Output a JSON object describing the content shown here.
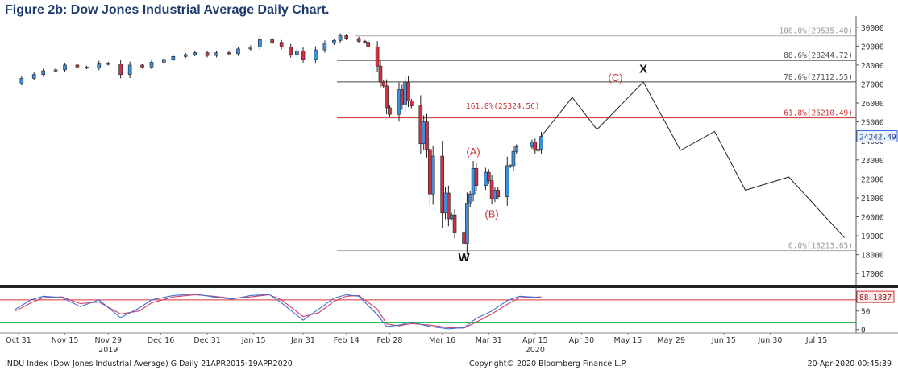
{
  "title": "Figure 2b: Dow Jones Industrial Average Daily Chart.",
  "footer": {
    "left": "INDU Index (Dow Jones Industrial Average) G  Daily 21APR2015-19APR2020",
    "center": "Copyright© 2020 Bloomberg Finance L.P.",
    "right": "20-Apr-2020 00:45:39"
  },
  "colors": {
    "up": "#3f8fd8",
    "down": "#d03040",
    "fib_line": "#444444",
    "fib_red_line": "#cc3333",
    "fib_label": "#555555",
    "red_label": "#cc3333",
    "osc_k": "#3f6fd8",
    "osc_d": "#d04060",
    "osc_upper": "#dd3333",
    "osc_lower": "#33bb55"
  },
  "chart_data": [
    {
      "type": "candlestick",
      "ylim": [
        16500,
        30500
      ],
      "y_ticks": [
        17000,
        18000,
        19000,
        20000,
        21000,
        22000,
        23000,
        24000,
        25000,
        26000,
        27000,
        28000,
        29000,
        30000
      ],
      "x_labels": [
        {
          "label": "Oct 31",
          "date": "2019-10-31"
        },
        {
          "label": "Nov 15",
          "date": "2019-11-15"
        },
        {
          "label": "Nov 29",
          "sublabel": "2019",
          "date": "2019-11-29"
        },
        {
          "label": "Dec 16",
          "date": "2019-12-16"
        },
        {
          "label": "Dec 31",
          "date": "2019-12-31"
        },
        {
          "label": "Jan 15",
          "date": "2020-01-15"
        },
        {
          "label": "Jan 31",
          "date": "2020-01-31"
        },
        {
          "label": "Feb 14",
          "date": "2020-02-14"
        },
        {
          "label": "Feb 28",
          "date": "2020-02-28"
        },
        {
          "label": "Mar 16",
          "date": "2020-03-16"
        },
        {
          "label": "Mar 31",
          "date": "2020-03-31"
        },
        {
          "label": "Apr 15",
          "sublabel": "2020",
          "date": "2020-04-15"
        },
        {
          "label": "Apr 30",
          "date": "2020-04-30"
        },
        {
          "label": "May 15",
          "date": "2020-05-15"
        },
        {
          "label": "May 29",
          "date": "2020-05-29"
        },
        {
          "label": "Jun 15",
          "date": "2020-06-15"
        },
        {
          "label": "Jun 30",
          "date": "2020-06-30"
        },
        {
          "label": "Jul 15",
          "date": "2020-07-15"
        }
      ],
      "close_path": [
        [
          "2019-10-30",
          27050
        ],
        [
          "2019-11-01",
          27300
        ],
        [
          "2019-11-05",
          27500
        ],
        [
          "2019-11-08",
          27700
        ],
        [
          "2019-11-12",
          27750
        ],
        [
          "2019-11-15",
          28000
        ],
        [
          "2019-11-19",
          27900
        ],
        [
          "2019-11-22",
          27850
        ],
        [
          "2019-11-26",
          28100
        ],
        [
          "2019-11-29",
          28050
        ],
        [
          "2019-12-03",
          27500
        ],
        [
          "2019-12-06",
          28000
        ],
        [
          "2019-12-10",
          27900
        ],
        [
          "2019-12-13",
          28150
        ],
        [
          "2019-12-17",
          28300
        ],
        [
          "2019-12-20",
          28450
        ],
        [
          "2019-12-24",
          28550
        ],
        [
          "2019-12-27",
          28650
        ],
        [
          "2019-12-31",
          28500
        ],
        [
          "2020-01-03",
          28650
        ],
        [
          "2020-01-07",
          28600
        ],
        [
          "2020-01-10",
          28850
        ],
        [
          "2020-01-14",
          28950
        ],
        [
          "2020-01-17",
          29350
        ],
        [
          "2020-01-21",
          29200
        ],
        [
          "2020-01-24",
          28950
        ],
        [
          "2020-01-27",
          28550
        ],
        [
          "2020-01-29",
          28750
        ],
        [
          "2020-01-31",
          28300
        ],
        [
          "2020-02-04",
          28800
        ],
        [
          "2020-02-07",
          29150
        ],
        [
          "2020-02-10",
          29300
        ],
        [
          "2020-02-12",
          29550
        ],
        [
          "2020-02-14",
          29400
        ],
        [
          "2020-02-18",
          29250
        ],
        [
          "2020-02-20",
          29200
        ],
        [
          "2020-02-21",
          28950
        ],
        [
          "2020-02-24",
          27950
        ],
        [
          "2020-02-25",
          27100
        ],
        [
          "2020-02-26",
          26900
        ],
        [
          "2020-02-27",
          25750
        ],
        [
          "2020-02-28",
          25400
        ],
        [
          "2020-03-02",
          26700
        ],
        [
          "2020-03-03",
          25900
        ],
        [
          "2020-03-04",
          27100
        ],
        [
          "2020-03-05",
          26100
        ],
        [
          "2020-03-06",
          25850
        ],
        [
          "2020-03-09",
          23850
        ],
        [
          "2020-03-10",
          25000
        ],
        [
          "2020-03-11",
          23550
        ],
        [
          "2020-03-12",
          21200
        ],
        [
          "2020-03-13",
          23200
        ],
        [
          "2020-03-16",
          20200
        ],
        [
          "2020-03-17",
          21250
        ],
        [
          "2020-03-18",
          19900
        ],
        [
          "2020-03-19",
          20100
        ],
        [
          "2020-03-20",
          19150
        ],
        [
          "2020-03-23",
          18600
        ],
        [
          "2020-03-24",
          20700
        ],
        [
          "2020-03-25",
          21200
        ],
        [
          "2020-03-26",
          22550
        ],
        [
          "2020-03-27",
          21650
        ],
        [
          "2020-03-30",
          22350
        ],
        [
          "2020-03-31",
          21900
        ],
        [
          "2020-04-01",
          20950
        ],
        [
          "2020-04-02",
          21400
        ],
        [
          "2020-04-03",
          21050
        ],
        [
          "2020-04-06",
          22700
        ],
        [
          "2020-04-07",
          22650
        ],
        [
          "2020-04-08",
          23450
        ],
        [
          "2020-04-09",
          23700
        ],
        [
          "2020-04-14",
          23950
        ],
        [
          "2020-04-15",
          23500
        ],
        [
          "2020-04-16",
          23550
        ],
        [
          "2020-04-17",
          24242
        ]
      ],
      "projection": [
        [
          "2020-04-17",
          24242
        ],
        [
          "2020-04-27",
          26300
        ],
        [
          "2020-05-05",
          24600
        ],
        [
          "2020-05-20",
          27112
        ],
        [
          "2020-06-01",
          23500
        ],
        [
          "2020-06-12",
          24500
        ],
        [
          "2020-06-22",
          21400
        ],
        [
          "2020-07-06",
          22100
        ],
        [
          "2020-07-24",
          18900
        ]
      ],
      "fib_levels": [
        {
          "label": "100.0%(29535.40)",
          "value": 29535.4
        },
        {
          "label": "88.6%(28244.72)",
          "value": 28244.72
        },
        {
          "label": "78.6%(27112.55)",
          "value": 27112.55
        },
        {
          "label": "61.8%(25210.49)",
          "value": 25210.49,
          "color": "red"
        },
        {
          "label": "0.0%(18213.65)",
          "value": 18213.65
        }
      ],
      "extension_label": {
        "label": "161.8%(25324.56)",
        "value": 25324.56
      },
      "wave_labels": [
        {
          "text": "W",
          "date": "2020-03-23",
          "value": 17650,
          "style": "black"
        },
        {
          "text": "X",
          "date": "2020-05-20",
          "value": 27600,
          "style": "black"
        },
        {
          "text": "(A)",
          "date": "2020-03-26",
          "value": 23250,
          "style": "red"
        },
        {
          "text": "(B)",
          "date": "2020-04-01",
          "value": 19950,
          "style": "red"
        },
        {
          "text": "(C)",
          "date": "2020-05-11",
          "value": 27150,
          "style": "red"
        }
      ],
      "last_price": {
        "label": "24242.49",
        "value": 24242.49
      }
    },
    {
      "type": "line",
      "name_k": "",
      "ylim": [
        -5,
        108
      ],
      "y_ticks": [
        0,
        50
      ],
      "levels": {
        "upper": 80,
        "lower": 20
      },
      "last_value": {
        "label": "88.1837",
        "value": 88.1837
      },
      "k_line": [
        [
          "2019-10-30",
          55
        ],
        [
          "2019-11-04",
          80
        ],
        [
          "2019-11-08",
          90
        ],
        [
          "2019-11-14",
          86
        ],
        [
          "2019-11-20",
          62
        ],
        [
          "2019-11-26",
          80
        ],
        [
          "2019-12-03",
          32
        ],
        [
          "2019-12-09",
          58
        ],
        [
          "2019-12-13",
          80
        ],
        [
          "2019-12-20",
          92
        ],
        [
          "2019-12-27",
          96
        ],
        [
          "2020-01-02",
          88
        ],
        [
          "2020-01-08",
          82
        ],
        [
          "2020-01-14",
          92
        ],
        [
          "2020-01-20",
          95
        ],
        [
          "2020-01-24",
          72
        ],
        [
          "2020-01-31",
          25
        ],
        [
          "2020-02-05",
          55
        ],
        [
          "2020-02-10",
          85
        ],
        [
          "2020-02-14",
          94
        ],
        [
          "2020-02-18",
          90
        ],
        [
          "2020-02-24",
          40
        ],
        [
          "2020-02-27",
          8
        ],
        [
          "2020-03-02",
          12
        ],
        [
          "2020-03-06",
          20
        ],
        [
          "2020-03-12",
          8
        ],
        [
          "2020-03-18",
          2
        ],
        [
          "2020-03-23",
          5
        ],
        [
          "2020-03-27",
          30
        ],
        [
          "2020-04-01",
          50
        ],
        [
          "2020-04-06",
          78
        ],
        [
          "2020-04-10",
          90
        ],
        [
          "2020-04-17",
          86
        ]
      ],
      "d_line": [
        [
          "2019-10-30",
          50
        ],
        [
          "2019-11-04",
          72
        ],
        [
          "2019-11-08",
          86
        ],
        [
          "2019-11-14",
          88
        ],
        [
          "2019-11-20",
          70
        ],
        [
          "2019-11-26",
          74
        ],
        [
          "2019-12-03",
          42
        ],
        [
          "2019-12-09",
          50
        ],
        [
          "2019-12-13",
          72
        ],
        [
          "2019-12-20",
          88
        ],
        [
          "2019-12-27",
          94
        ],
        [
          "2020-01-02",
          90
        ],
        [
          "2020-01-08",
          84
        ],
        [
          "2020-01-14",
          88
        ],
        [
          "2020-01-20",
          94
        ],
        [
          "2020-01-24",
          80
        ],
        [
          "2020-01-31",
          35
        ],
        [
          "2020-02-05",
          45
        ],
        [
          "2020-02-10",
          76
        ],
        [
          "2020-02-14",
          90
        ],
        [
          "2020-02-18",
          92
        ],
        [
          "2020-02-24",
          55
        ],
        [
          "2020-02-27",
          15
        ],
        [
          "2020-03-02",
          10
        ],
        [
          "2020-03-06",
          16
        ],
        [
          "2020-03-12",
          12
        ],
        [
          "2020-03-18",
          5
        ],
        [
          "2020-03-23",
          4
        ],
        [
          "2020-03-27",
          20
        ],
        [
          "2020-04-01",
          42
        ],
        [
          "2020-04-06",
          68
        ],
        [
          "2020-04-10",
          86
        ],
        [
          "2020-04-17",
          88
        ]
      ]
    }
  ]
}
